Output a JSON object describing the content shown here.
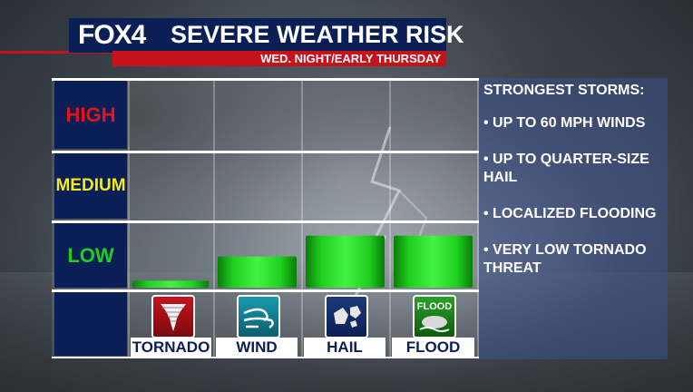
{
  "header": {
    "logo_fox": "FOX",
    "logo_num": "4",
    "title": "SEVERE WEATHER RISK",
    "subtitle": "WED. NIGHT/EARLY THURSDAY"
  },
  "colors": {
    "navy": "#0b1f57",
    "red": "#c8121b",
    "high": "#e3141c",
    "medium": "#f5e81a",
    "low": "#1ed01e",
    "bar": "#22d422"
  },
  "chart_data": {
    "type": "bar",
    "categories": [
      "TORNADO",
      "WIND",
      "HAIL",
      "FLOOD"
    ],
    "values": [
      0.1,
      0.45,
      0.75,
      0.75
    ],
    "levels": [
      "HIGH",
      "MEDIUM",
      "LOW"
    ],
    "ylim": [
      0,
      3
    ],
    "grid": true
  },
  "icons": [
    "tornado-icon",
    "wind-icon",
    "hail-icon",
    "flood-icon"
  ],
  "flood_icon_text": "FLOOD",
  "panel": {
    "heading": "STRONGEST STORMS:",
    "bullets": [
      "• UP TO 60 MPH WINDS",
      "• UP TO QUARTER-SIZE HAIL",
      "• LOCALIZED FLOODING",
      "• VERY LOW TORNADO THREAT"
    ]
  }
}
